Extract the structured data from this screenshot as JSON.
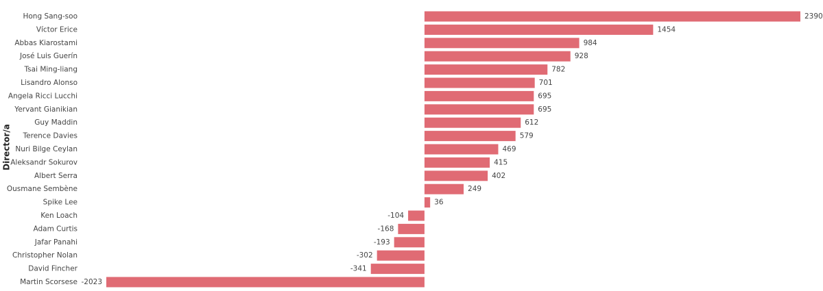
{
  "chart_data": {
    "type": "bar",
    "orientation": "horizontal",
    "y_label": "Director/a",
    "categories": [
      "Hong Sang-soo",
      "Víctor Erice",
      "Abbas Kiarostami",
      "José Luis Guerín",
      "Tsai Ming-liang",
      "Lisandro Alonso",
      "Angela Ricci Lucchi",
      "Yervant Gianikian",
      "Guy Maddin",
      "Terence Davies",
      "Nuri Bilge Ceylan",
      "Aleksandr Sokurov",
      "Albert Serra",
      "Ousmane Sembène",
      "Spike Lee",
      "Ken Loach",
      "Adam Curtis",
      "Jafar Panahi",
      "Christopher Nolan",
      "David Fincher",
      "Martin Scorsese"
    ],
    "values": [
      2390,
      1454,
      984,
      928,
      782,
      701,
      695,
      695,
      612,
      579,
      469,
      415,
      402,
      249,
      36,
      -104,
      -168,
      -193,
      -302,
      -341,
      -2023
    ],
    "color": "#e06b74"
  }
}
